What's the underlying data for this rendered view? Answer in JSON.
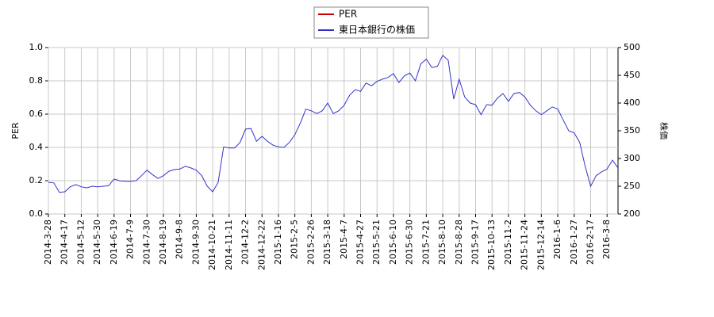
{
  "chart_data": {
    "type": "line",
    "y_label": "PER",
    "y2_label": "株価",
    "categories": [
      "2014-3-28",
      null,
      null,
      "2014-4-17",
      null,
      null,
      "2014-5-12",
      null,
      null,
      "2014-5-30",
      null,
      null,
      "2014-6-19",
      null,
      null,
      "2014-7-9",
      null,
      null,
      "2014-7-30",
      null,
      null,
      "2014-8-19",
      null,
      null,
      "2014-9-8",
      null,
      null,
      "2014-9-30",
      null,
      null,
      "2014-10-21",
      null,
      null,
      "2014-11-11",
      null,
      null,
      "2014-12-2",
      null,
      null,
      "2014-12-22",
      null,
      null,
      "2015-1-16",
      null,
      null,
      "2015-2-5",
      null,
      null,
      "2015-2-26",
      null,
      null,
      "2015-3-18",
      null,
      null,
      "2015-4-7",
      null,
      null,
      "2015-4-27",
      null,
      null,
      "2015-5-21",
      null,
      null,
      "2015-6-10",
      null,
      null,
      "2015-6-30",
      null,
      null,
      "2015-7-21",
      null,
      null,
      "2015-8-10",
      null,
      null,
      "2015-8-28",
      null,
      null,
      "2015-9-17",
      null,
      null,
      "2015-10-13",
      null,
      null,
      "2015-11-2",
      null,
      null,
      "2015-11-24",
      null,
      null,
      "2015-12-14",
      null,
      null,
      "2016-1-6",
      null,
      null,
      "2016-1-27",
      null,
      null,
      "2016-2-17",
      null,
      null,
      "2016-3-8",
      null,
      null
    ],
    "series": [
      {
        "name": "PER",
        "color": "#cc0000",
        "values": [
          null,
          null,
          null,
          null,
          null,
          null,
          null,
          null,
          null,
          null,
          null,
          null,
          null,
          null,
          null,
          null,
          null,
          null,
          null,
          null,
          null,
          null,
          null,
          null,
          null,
          null,
          null,
          null,
          null,
          null,
          null,
          null,
          null,
          null,
          null,
          null,
          null,
          null,
          null,
          null,
          null,
          null,
          null,
          null,
          null,
          null,
          null,
          null,
          null,
          null,
          null,
          null,
          null,
          null,
          null,
          null,
          null,
          null,
          null,
          null,
          null,
          null,
          null,
          null,
          null,
          null,
          null,
          null,
          null,
          null,
          null,
          null,
          null,
          null,
          null,
          null,
          null,
          null,
          null,
          null,
          null,
          null,
          null,
          null,
          null,
          null,
          null,
          null,
          null,
          null,
          null,
          null,
          null,
          null,
          null,
          null,
          null,
          null,
          null,
          null,
          null,
          null,
          null,
          null,
          null
        ]
      },
      {
        "name": "東日本銀行の株価",
        "color": "#3333cc",
        "axis": "y2",
        "values": [
          257,
          256,
          239,
          240,
          249,
          253,
          249,
          247,
          250,
          249,
          250,
          251,
          263,
          260,
          259,
          259,
          260,
          269,
          279,
          271,
          264,
          269,
          277,
          280,
          281,
          286,
          283,
          279,
          269,
          250,
          240,
          257,
          321,
          319,
          319,
          329,
          353,
          354,
          331,
          340,
          331,
          324,
          321,
          320,
          329,
          343,
          364,
          389,
          386,
          381,
          386,
          400,
          381,
          386,
          396,
          414,
          424,
          421,
          436,
          431,
          439,
          443,
          446,
          453,
          437,
          449,
          454,
          440,
          471,
          479,
          464,
          466,
          486,
          477,
          407,
          443,
          411,
          400,
          397,
          379,
          397,
          396,
          409,
          417,
          403,
          417,
          419,
          411,
          396,
          386,
          379,
          386,
          393,
          389,
          369,
          350,
          346,
          329,
          286,
          250,
          269,
          276,
          281,
          297,
          283
        ]
      }
    ],
    "ylim": [
      0,
      1
    ],
    "yticks": [
      {
        "value": 0,
        "label": "0.0"
      },
      0.2,
      0.4,
      0.6,
      0.8,
      {
        "value": 1,
        "label": "1.0"
      }
    ],
    "y2lim": [
      200,
      500
    ],
    "y2ticks": [
      200,
      250,
      300,
      350,
      400,
      450,
      500
    ],
    "grid": true,
    "legend": "top"
  }
}
